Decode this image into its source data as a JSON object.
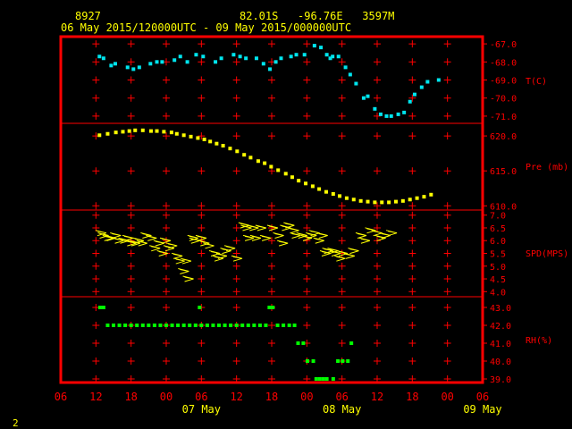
{
  "header": {
    "station_id": "8927",
    "location": "82.01S   -96.76E   3597M",
    "period": "06 May 2015/120000UTC - 09 May 2015/000000UTC"
  },
  "footer": {
    "page_number": "2"
  },
  "colors": {
    "background": "#000000",
    "frame": "#ff0000",
    "grid_marks": "#ff0000",
    "axis_text": "#ff0000",
    "header_text": "#ffff00",
    "temperature": "#00e5ee",
    "pressure": "#ffff00",
    "wind": "#ffff00",
    "humidity": "#00ff00"
  },
  "chart_data": {
    "type": "scatter",
    "x_axis": {
      "unit": "hours from 06 May 2015 06 UTC",
      "range": [
        0,
        72
      ],
      "tick_labels": [
        "06",
        "12",
        "18",
        "00",
        "06",
        "12",
        "18",
        "00",
        "06",
        "12",
        "18",
        "00",
        "06"
      ],
      "day_labels": [
        {
          "label": "07 May",
          "at": 24
        },
        {
          "label": "08 May",
          "at": 48
        },
        {
          "label": "09 May",
          "at": 72
        }
      ]
    },
    "panels": [
      {
        "name": "temperature",
        "label": "T(C)",
        "ylim": [
          -71.4,
          -66.6
        ],
        "ticks": [
          "-67.0",
          "-68.0",
          "-69.0",
          "-70.0",
          "-71.0"
        ],
        "tick_values": [
          -67,
          -68,
          -69,
          -70,
          -71
        ],
        "points": [
          [
            6.6,
            -67.7
          ],
          [
            7.3,
            -67.8
          ],
          [
            8.6,
            -68.2
          ],
          [
            9.3,
            -68.1
          ],
          [
            11.4,
            -68.3
          ],
          [
            12.4,
            -68.4
          ],
          [
            13.4,
            -68.3
          ],
          [
            15.3,
            -68.1
          ],
          [
            16.4,
            -68.0
          ],
          [
            17.3,
            -68.0
          ],
          [
            19.4,
            -67.9
          ],
          [
            20.4,
            -67.7
          ],
          [
            21.6,
            -68.0
          ],
          [
            23.1,
            -67.6
          ],
          [
            24.3,
            -67.7
          ],
          [
            26.4,
            -68.0
          ],
          [
            27.4,
            -67.8
          ],
          [
            29.5,
            -67.6
          ],
          [
            30.6,
            -67.7
          ],
          [
            31.6,
            -67.8
          ],
          [
            33.4,
            -67.8
          ],
          [
            34.6,
            -68.1
          ],
          [
            35.7,
            -68.4
          ],
          [
            36.7,
            -68.0
          ],
          [
            37.6,
            -67.8
          ],
          [
            39.3,
            -67.7
          ],
          [
            40.2,
            -67.6
          ],
          [
            41.6,
            -67.6
          ],
          [
            43.3,
            -67.1
          ],
          [
            44.4,
            -67.2
          ],
          [
            45.4,
            -67.6
          ],
          [
            46.0,
            -67.8
          ],
          [
            46.4,
            -67.7
          ],
          [
            47.4,
            -67.7
          ],
          [
            48.6,
            -68.3
          ],
          [
            49.4,
            -68.7
          ],
          [
            50.4,
            -69.2
          ],
          [
            51.7,
            -70.0
          ],
          [
            52.4,
            -69.9
          ],
          [
            53.6,
            -70.6
          ],
          [
            54.6,
            -70.9
          ],
          [
            55.6,
            -71.0
          ],
          [
            56.4,
            -71.0
          ],
          [
            57.6,
            -70.9
          ],
          [
            58.6,
            -70.8
          ],
          [
            59.6,
            -70.2
          ],
          [
            60.4,
            -69.8
          ],
          [
            61.6,
            -69.4
          ],
          [
            62.6,
            -69.1
          ],
          [
            64.5,
            -69.0
          ]
        ]
      },
      {
        "name": "pressure",
        "label": "Pre (mb)",
        "ylim": [
          609.4,
          621.8
        ],
        "ticks": [
          "620.0",
          "615.0",
          "610.0"
        ],
        "tick_values": [
          620,
          615,
          610
        ],
        "points": [
          [
            6.6,
            620.1
          ],
          [
            8.0,
            620.3
          ],
          [
            9.4,
            620.5
          ],
          [
            10.6,
            620.6
          ],
          [
            11.7,
            620.7
          ],
          [
            12.7,
            620.8
          ],
          [
            14.0,
            620.8
          ],
          [
            15.4,
            620.7
          ],
          [
            16.4,
            620.7
          ],
          [
            17.6,
            620.6
          ],
          [
            18.9,
            620.5
          ],
          [
            19.8,
            620.3
          ],
          [
            21.0,
            620.1
          ],
          [
            22.2,
            619.9
          ],
          [
            23.4,
            619.7
          ],
          [
            24.5,
            619.5
          ],
          [
            25.5,
            619.2
          ],
          [
            26.6,
            618.9
          ],
          [
            27.7,
            618.6
          ],
          [
            28.9,
            618.2
          ],
          [
            30.1,
            617.8
          ],
          [
            31.3,
            617.3
          ],
          [
            32.4,
            616.9
          ],
          [
            33.7,
            616.4
          ],
          [
            34.8,
            616.1
          ],
          [
            35.9,
            615.6
          ],
          [
            37.1,
            615.1
          ],
          [
            38.4,
            614.6
          ],
          [
            39.5,
            614.1
          ],
          [
            40.6,
            613.6
          ],
          [
            41.8,
            613.2
          ],
          [
            43.0,
            612.8
          ],
          [
            44.1,
            612.4
          ],
          [
            45.3,
            612.0
          ],
          [
            46.5,
            611.7
          ],
          [
            47.6,
            611.4
          ],
          [
            48.8,
            611.1
          ],
          [
            50.0,
            610.9
          ],
          [
            51.2,
            610.7
          ],
          [
            52.4,
            610.6
          ],
          [
            53.6,
            610.5
          ],
          [
            54.8,
            610.5
          ],
          [
            56.0,
            610.5
          ],
          [
            57.2,
            610.6
          ],
          [
            58.4,
            610.7
          ],
          [
            59.6,
            610.9
          ],
          [
            60.8,
            611.1
          ],
          [
            62.0,
            611.3
          ],
          [
            63.2,
            611.6
          ]
        ]
      },
      {
        "name": "wind_speed",
        "label": "SPD(MPS)",
        "ylim": [
          3.8,
          7.2
        ],
        "ticks": [
          "7.0",
          "6.5",
          "6.0",
          "5.5",
          "5.0",
          "4.5",
          "4.0"
        ],
        "tick_values": [
          7.0,
          6.5,
          6.0,
          5.5,
          5.0,
          4.5,
          4.0
        ],
        "points": [
          [
            7.0,
            6.3
          ],
          [
            7.4,
            6.2
          ],
          [
            8.2,
            6.1
          ],
          [
            8.6,
            6.1
          ],
          [
            9.5,
            6.2
          ],
          [
            10.0,
            6.0
          ],
          [
            10.9,
            6.0
          ],
          [
            11.6,
            6.1
          ],
          [
            12.1,
            5.9
          ],
          [
            12.8,
            5.9
          ],
          [
            13.4,
            6.0
          ],
          [
            14.0,
            5.9
          ],
          [
            14.7,
            6.2
          ],
          [
            15.6,
            6.1
          ],
          [
            16.2,
            5.7
          ],
          [
            16.9,
            5.9
          ],
          [
            17.5,
            5.5
          ],
          [
            18.0,
            6.0
          ],
          [
            18.6,
            5.7
          ],
          [
            19.1,
            5.8
          ],
          [
            20.0,
            5.4
          ],
          [
            20.4,
            5.2
          ],
          [
            21.1,
            4.8
          ],
          [
            21.5,
            5.2
          ],
          [
            21.9,
            4.5
          ],
          [
            22.7,
            6.1
          ],
          [
            23.0,
            6.0
          ],
          [
            24.1,
            6.1
          ],
          [
            24.6,
            5.9
          ],
          [
            25.4,
            5.8
          ],
          [
            26.4,
            5.5
          ],
          [
            27.0,
            5.3
          ],
          [
            27.6,
            5.4
          ],
          [
            28.3,
            5.6
          ],
          [
            29.0,
            5.7
          ],
          [
            30.2,
            5.3
          ],
          [
            31.4,
            6.6
          ],
          [
            31.8,
            6.5
          ],
          [
            32.2,
            6.1
          ],
          [
            33.0,
            6.5
          ],
          [
            33.4,
            6.1
          ],
          [
            34.3,
            6.5
          ],
          [
            35.1,
            6.1
          ],
          [
            36.3,
            6.5
          ],
          [
            37.3,
            6.2
          ],
          [
            38.0,
            5.9
          ],
          [
            38.5,
            6.5
          ],
          [
            39.1,
            6.6
          ],
          [
            39.9,
            6.4
          ],
          [
            40.2,
            6.2
          ],
          [
            41.3,
            6.2
          ],
          [
            42.1,
            6.1
          ],
          [
            42.9,
            6.2
          ],
          [
            43.4,
            6.3
          ],
          [
            44.2,
            6.0
          ],
          [
            44.8,
            6.2
          ],
          [
            45.3,
            5.5
          ],
          [
            45.7,
            5.6
          ],
          [
            46.6,
            5.6
          ],
          [
            47.0,
            5.5
          ],
          [
            47.8,
            5.3
          ],
          [
            48.2,
            5.5
          ],
          [
            49.4,
            5.4
          ],
          [
            50.1,
            5.6
          ],
          [
            51.4,
            6.2
          ],
          [
            52.0,
            6.0
          ],
          [
            53.0,
            6.4
          ],
          [
            54.1,
            6.3
          ],
          [
            54.7,
            6.1
          ],
          [
            55.5,
            6.2
          ],
          [
            56.6,
            6.3
          ]
        ]
      },
      {
        "name": "humidity",
        "label": "RH(%)",
        "ylim": [
          38.8,
          43.6
        ],
        "ticks": [
          "43.0",
          "42.0",
          "41.0",
          "40.0",
          "39.0"
        ],
        "tick_values": [
          43,
          42,
          41,
          40,
          39
        ],
        "points": [
          [
            6.7,
            43.0
          ],
          [
            7.3,
            43.0
          ],
          [
            8.0,
            42.0
          ],
          [
            9.0,
            42.0
          ],
          [
            10.0,
            42.0
          ],
          [
            11.0,
            42.0
          ],
          [
            12.0,
            42.0
          ],
          [
            13.0,
            42.0
          ],
          [
            14.0,
            42.0
          ],
          [
            15.0,
            42.0
          ],
          [
            16.0,
            42.0
          ],
          [
            17.0,
            42.0
          ],
          [
            18.0,
            42.0
          ],
          [
            19.0,
            42.0
          ],
          [
            20.0,
            42.0
          ],
          [
            21.0,
            42.0
          ],
          [
            22.0,
            42.0
          ],
          [
            23.0,
            42.0
          ],
          [
            23.7,
            43.0
          ],
          [
            24.0,
            42.0
          ],
          [
            25.0,
            42.0
          ],
          [
            26.0,
            42.0
          ],
          [
            27.0,
            42.0
          ],
          [
            28.0,
            42.0
          ],
          [
            29.0,
            42.0
          ],
          [
            30.0,
            42.0
          ],
          [
            31.0,
            42.0
          ],
          [
            32.0,
            42.0
          ],
          [
            33.0,
            42.0
          ],
          [
            34.0,
            42.0
          ],
          [
            35.0,
            42.0
          ],
          [
            35.6,
            43.0
          ],
          [
            36.2,
            43.0
          ],
          [
            37.0,
            42.0
          ],
          [
            38.0,
            42.0
          ],
          [
            39.0,
            42.0
          ],
          [
            39.9,
            42.0
          ],
          [
            40.5,
            41.0
          ],
          [
            41.4,
            41.0
          ],
          [
            42.1,
            40.0
          ],
          [
            43.1,
            40.0
          ],
          [
            43.6,
            39.0
          ],
          [
            44.2,
            39.0
          ],
          [
            44.8,
            39.0
          ],
          [
            45.4,
            39.0
          ],
          [
            46.5,
            39.0
          ],
          [
            47.3,
            40.0
          ],
          [
            48.1,
            40.0
          ],
          [
            49.0,
            40.0
          ],
          [
            49.6,
            41.0
          ]
        ]
      }
    ]
  }
}
